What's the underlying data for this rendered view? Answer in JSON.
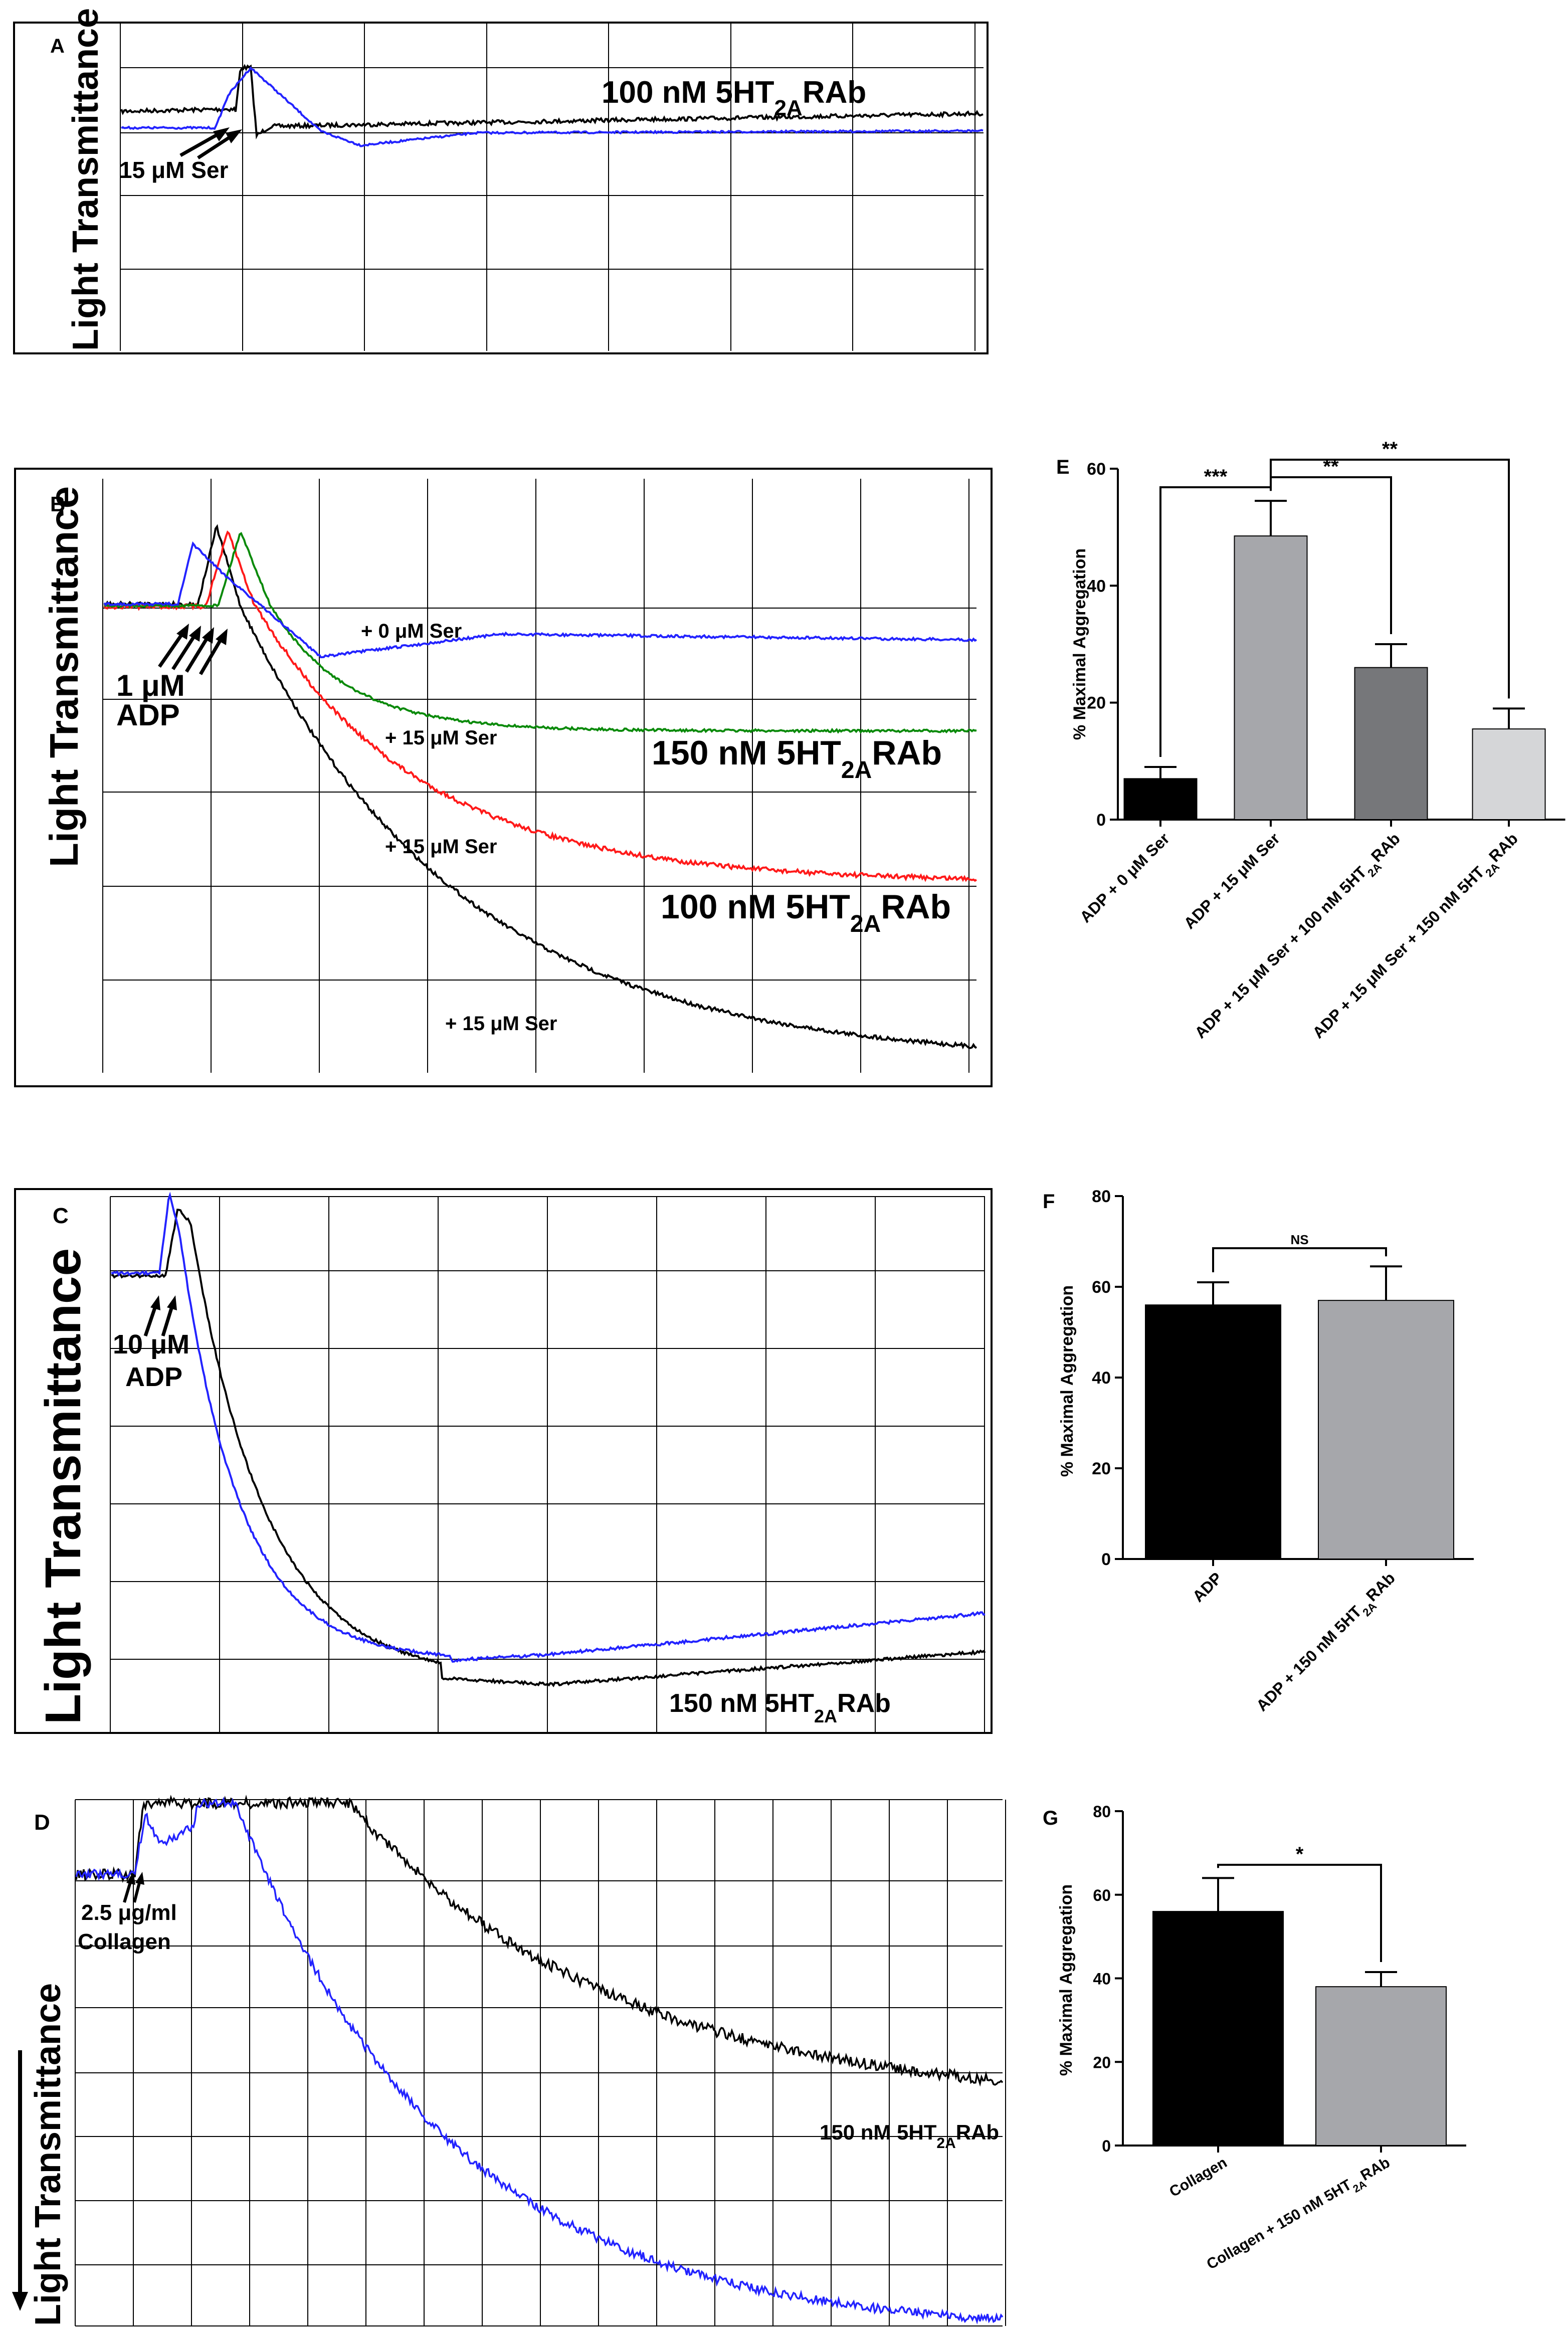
{
  "panels": {
    "A": {
      "letter": "A",
      "ylabel": "Light Transmittance",
      "label_ab_pre": "100 nM 5HT",
      "label_ab_sub": "2A",
      "label_ab_post": "RAb",
      "arrow_label": "15 μM Ser"
    },
    "B": {
      "letter": "B",
      "ylabel": "Light Transmittance",
      "adp_l1": "1 μM",
      "adp_l2": "ADP",
      "ser0": "+ 0 μM Ser",
      "ser15a": "+ 15 μM Ser",
      "ser15b": "+ 15 μM Ser",
      "ser15c": "+ 15 μM Ser",
      "ab150_pre": "150 nM 5HT",
      "ab150_sub": "2A",
      "ab150_post": "RAb",
      "ab100_pre": "100 nM 5HT",
      "ab100_sub": "2A",
      "ab100_post": "RAb"
    },
    "C": {
      "letter": "C",
      "ylabel": "Light Transmittance",
      "adp_l1": "10 μM",
      "adp_l2": "ADP",
      "ab_pre": "150 nM 5HT",
      "ab_sub": "2A",
      "ab_post": "RAb"
    },
    "D": {
      "letter": "D",
      "ylabel": "Light Transmittance",
      "col_l1": "2.5 μg/ml",
      "col_l2": "Collagen",
      "ab_pre": "150 nM 5HT",
      "ab_sub": "2A",
      "ab_post": "RAb"
    }
  },
  "chart_data": [
    {
      "id": "E",
      "type": "bar",
      "letter": "E",
      "ylabel": "% Maximal Aggregation",
      "ylim": [
        0,
        60
      ],
      "yticks": [
        "0",
        "20",
        "40",
        "60"
      ],
      "categories": [
        {
          "pre": "ADP + 0 μM Ser",
          "sub": "",
          "post": ""
        },
        {
          "pre": "ADP + 15 μM Ser",
          "sub": "",
          "post": ""
        },
        {
          "pre": "ADP + 15 μM Ser + 100 nM 5HT",
          "sub": "2A",
          "post": "RAb"
        },
        {
          "pre": "ADP + 15 μM Ser + 150 nM 5HT",
          "sub": "2A",
          "post": "RAb"
        }
      ],
      "values": [
        7,
        48.5,
        26,
        15.5
      ],
      "errors": [
        2,
        6,
        4,
        3.5
      ],
      "colors": [
        "#000000",
        "#a6a7ab",
        "#76777a",
        "#d5d6d8"
      ],
      "significance": [
        {
          "from": 0,
          "to": 1,
          "label": "***"
        },
        {
          "from": 1,
          "to": 2,
          "label": "**"
        },
        {
          "from": 1,
          "to": 3,
          "label": "**"
        }
      ]
    },
    {
      "id": "F",
      "type": "bar",
      "letter": "F",
      "ylabel": "% Maximal Aggregation",
      "ylim": [
        0,
        80
      ],
      "yticks": [
        "0",
        "20",
        "40",
        "60",
        "80"
      ],
      "categories": [
        {
          "pre": "ADP",
          "sub": "",
          "post": ""
        },
        {
          "pre": "ADP + 150 nM 5HT",
          "sub": "2A",
          "post": "RAb"
        }
      ],
      "values": [
        56,
        57
      ],
      "errors": [
        5,
        7.5
      ],
      "colors": [
        "#000000",
        "#a6a7ab"
      ],
      "significance": [
        {
          "from": 0,
          "to": 1,
          "label": "NS"
        }
      ]
    },
    {
      "id": "G",
      "type": "bar",
      "letter": "G",
      "ylabel": "% Maximal Aggregation",
      "ylim": [
        0,
        80
      ],
      "yticks": [
        "0",
        "20",
        "40",
        "60",
        "80"
      ],
      "categories": [
        {
          "pre": "Collagen",
          "sub": "",
          "post": ""
        },
        {
          "pre": "Collagen + 150 nM 5HT",
          "sub": "2A",
          "post": "RAb"
        }
      ],
      "values": [
        56,
        38
      ],
      "errors": [
        8,
        3.5
      ],
      "colors": [
        "#000000",
        "#a6a7ab"
      ],
      "significance": [
        {
          "from": 0,
          "to": 1,
          "label": "*"
        }
      ]
    }
  ]
}
